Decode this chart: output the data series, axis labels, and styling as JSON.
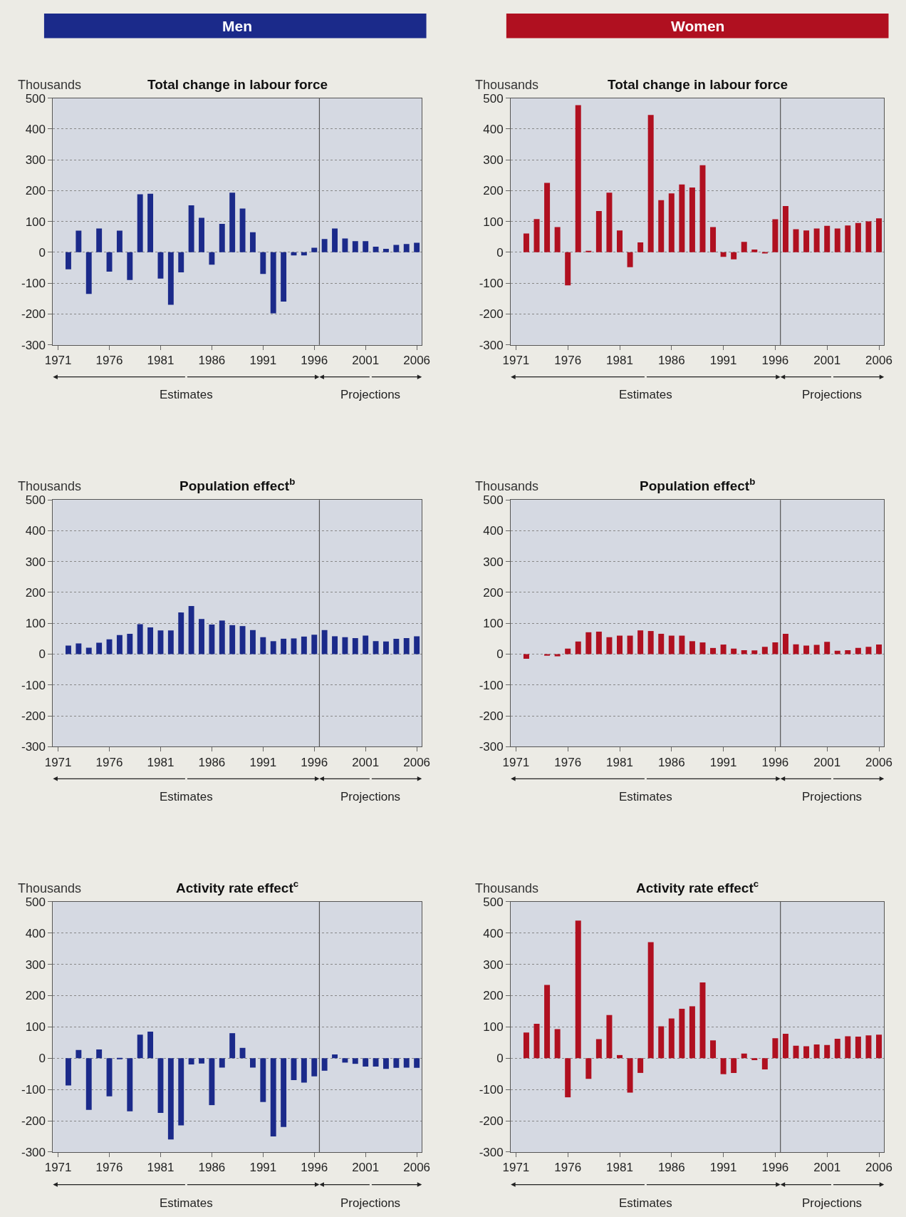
{
  "chart_data": [
    {
      "type": "bar",
      "title": "Total change in labour force",
      "ylabel": "Thousands",
      "color": "#1b2a8a",
      "x": [
        1972,
        1973,
        1974,
        1975,
        1976,
        1977,
        1978,
        1979,
        1980,
        1981,
        1982,
        1983,
        1984,
        1985,
        1986,
        1987,
        1988,
        1989,
        1990,
        1991,
        1992,
        1993,
        1994,
        1995,
        1996,
        1997,
        1998,
        1999,
        2000,
        2001,
        2002,
        2003,
        2004,
        2005,
        2006
      ],
      "values": [
        -55,
        70,
        -135,
        77,
        -63,
        70,
        -90,
        188,
        190,
        -85,
        -170,
        -65,
        152,
        112,
        -40,
        92,
        193,
        142,
        65,
        -70,
        -198,
        -160,
        -10,
        -10,
        15,
        43,
        77,
        45,
        36,
        36,
        18,
        11,
        24,
        27,
        31
      ],
      "xlim": [
        1970.5,
        2006.5
      ],
      "xticks": [
        1971,
        1976,
        1981,
        1986,
        1991,
        1996,
        2001,
        2006
      ],
      "ylim": [
        -300,
        500
      ],
      "yticks": [
        -300,
        -200,
        -100,
        0,
        100,
        200,
        300,
        400,
        500
      ],
      "grid": "y",
      "ref_lines": [
        {
          "axis": "x",
          "value": 1996.5,
          "color": "#555555"
        }
      ],
      "annotations": [
        "Men",
        "Estimates",
        "Projections"
      ]
    },
    {
      "type": "bar",
      "title": "Total change in labour force",
      "ylabel": "Thousands",
      "color": "#b01020",
      "x": [
        1972,
        1973,
        1974,
        1975,
        1976,
        1977,
        1978,
        1979,
        1980,
        1981,
        1982,
        1983,
        1984,
        1985,
        1986,
        1987,
        1988,
        1989,
        1990,
        1991,
        1992,
        1993,
        1994,
        1995,
        1996,
        1997,
        1998,
        1999,
        2000,
        2001,
        2002,
        2003,
        2004,
        2005,
        2006
      ],
      "values": [
        61,
        108,
        225,
        82,
        -107,
        477,
        5,
        134,
        193,
        71,
        -48,
        32,
        445,
        169,
        191,
        220,
        210,
        282,
        82,
        -15,
        -23,
        34,
        9,
        -4,
        107,
        150,
        75,
        71,
        77,
        86,
        77,
        87,
        95,
        100,
        110
      ],
      "xlim": [
        1970.5,
        2006.5
      ],
      "xticks": [
        1971,
        1976,
        1981,
        1986,
        1991,
        1996,
        2001,
        2006
      ],
      "ylim": [
        -300,
        500
      ],
      "yticks": [
        -300,
        -200,
        -100,
        0,
        100,
        200,
        300,
        400,
        500
      ],
      "grid": "y",
      "ref_lines": [
        {
          "axis": "x",
          "value": 1996.5,
          "color": "#555555"
        }
      ],
      "annotations": [
        "Women",
        "Estimates",
        "Projections"
      ]
    },
    {
      "type": "bar",
      "title": "Population effect$^{b}$",
      "ylabel": "Thousands",
      "color": "#1b2a8a",
      "x": [
        1972,
        1973,
        1974,
        1975,
        1976,
        1977,
        1978,
        1979,
        1980,
        1981,
        1982,
        1983,
        1984,
        1985,
        1986,
        1987,
        1988,
        1989,
        1990,
        1991,
        1992,
        1993,
        1994,
        1995,
        1996,
        1997,
        1998,
        1999,
        2000,
        2001,
        2002,
        2003,
        2004,
        2005,
        2006
      ],
      "values": [
        28,
        35,
        21,
        37,
        48,
        62,
        66,
        97,
        87,
        77,
        77,
        135,
        156,
        114,
        96,
        109,
        94,
        91,
        78,
        55,
        42,
        50,
        51,
        57,
        63,
        78,
        58,
        55,
        52,
        60,
        42,
        41,
        50,
        52,
        58
      ],
      "xlim": [
        1970.5,
        2006.5
      ],
      "xticks": [
        1971,
        1976,
        1981,
        1986,
        1991,
        1996,
        2001,
        2006
      ],
      "ylim": [
        -300,
        500
      ],
      "yticks": [
        -300,
        -200,
        -100,
        0,
        100,
        200,
        300,
        400,
        500
      ],
      "grid": "y",
      "ref_lines": [
        {
          "axis": "x",
          "value": 1996.5,
          "color": "#555555"
        }
      ],
      "annotations": [
        "Estimates",
        "Projections"
      ]
    },
    {
      "type": "bar",
      "title": "Population effect$^{b}$",
      "ylabel": "Thousands",
      "color": "#b01020",
      "x": [
        1972,
        1973,
        1974,
        1975,
        1976,
        1977,
        1978,
        1979,
        1980,
        1981,
        1982,
        1983,
        1984,
        1985,
        1986,
        1987,
        1988,
        1989,
        1990,
        1991,
        1992,
        1993,
        1994,
        1995,
        1996,
        1997,
        1998,
        1999,
        2000,
        2001,
        2002,
        2003,
        2004,
        2005,
        2006
      ],
      "values": [
        -15,
        0,
        -5,
        -7,
        18,
        41,
        71,
        73,
        55,
        60,
        60,
        77,
        75,
        66,
        60,
        60,
        42,
        38,
        20,
        31,
        18,
        13,
        12,
        24,
        38,
        66,
        32,
        28,
        30,
        40,
        11,
        13,
        20,
        24,
        31
      ],
      "xlim": [
        1970.5,
        2006.5
      ],
      "xticks": [
        1971,
        1976,
        1981,
        1986,
        1991,
        1996,
        2001,
        2006
      ],
      "ylim": [
        -300,
        500
      ],
      "yticks": [
        -300,
        -200,
        -100,
        0,
        100,
        200,
        300,
        400,
        500
      ],
      "grid": "y",
      "ref_lines": [
        {
          "axis": "x",
          "value": 1996.5,
          "color": "#555555"
        }
      ],
      "annotations": [
        "Estimates",
        "Projections"
      ]
    },
    {
      "type": "bar",
      "title": "Activity rate effect$^{c}$",
      "ylabel": "Thousands",
      "color": "#1b2a8a",
      "x": [
        1972,
        1973,
        1974,
        1975,
        1976,
        1977,
        1978,
        1979,
        1980,
        1981,
        1982,
        1983,
        1984,
        1985,
        1986,
        1987,
        1988,
        1989,
        1990,
        1991,
        1992,
        1993,
        1994,
        1995,
        1996,
        1997,
        1998,
        1999,
        2000,
        2001,
        2002,
        2003,
        2004,
        2005,
        2006
      ],
      "values": [
        -87,
        26,
        -165,
        28,
        -122,
        -2,
        -170,
        75,
        85,
        -175,
        -260,
        -215,
        -20,
        -17,
        -150,
        -30,
        80,
        33,
        -30,
        -140,
        -250,
        -220,
        -70,
        -78,
        -58,
        -40,
        12,
        -14,
        -18,
        -27,
        -27,
        -34,
        -31,
        -30,
        -31
      ],
      "xlim": [
        1970.5,
        2006.5
      ],
      "xticks": [
        1971,
        1976,
        1981,
        1986,
        1991,
        1996,
        2001,
        2006
      ],
      "ylim": [
        -300,
        500
      ],
      "yticks": [
        -300,
        -200,
        -100,
        0,
        100,
        200,
        300,
        400,
        500
      ],
      "grid": "y",
      "ref_lines": [
        {
          "axis": "x",
          "value": 1996.5,
          "color": "#555555"
        }
      ],
      "annotations": [
        "Estimates",
        "Projections"
      ]
    },
    {
      "type": "bar",
      "title": "Activity rate effect$^{c}$",
      "ylabel": "Thousands",
      "color": "#b01020",
      "x": [
        1972,
        1973,
        1974,
        1975,
        1976,
        1977,
        1978,
        1979,
        1980,
        1981,
        1982,
        1983,
        1984,
        1985,
        1986,
        1987,
        1988,
        1989,
        1990,
        1991,
        1992,
        1993,
        1994,
        1995,
        1996,
        1997,
        1998,
        1999,
        2000,
        2001,
        2002,
        2003,
        2004,
        2005,
        2006
      ],
      "values": [
        82,
        110,
        234,
        93,
        -125,
        440,
        -66,
        61,
        138,
        10,
        -110,
        -47,
        371,
        102,
        127,
        158,
        166,
        242,
        57,
        -51,
        -47,
        15,
        -6,
        -36,
        64,
        78,
        40,
        38,
        44,
        42,
        62,
        70,
        69,
        73,
        75
      ],
      "xlim": [
        1970.5,
        2006.5
      ],
      "xticks": [
        1971,
        1976,
        1981,
        1986,
        1991,
        1996,
        2001,
        2006
      ],
      "ylim": [
        -300,
        500
      ],
      "yticks": [
        -300,
        -200,
        -100,
        0,
        100,
        200,
        300,
        400,
        500
      ],
      "grid": "y",
      "ref_lines": [
        {
          "axis": "x",
          "value": 1996.5,
          "color": "#555555"
        }
      ],
      "annotations": [
        "Estimates",
        "Projections"
      ]
    }
  ]
}
